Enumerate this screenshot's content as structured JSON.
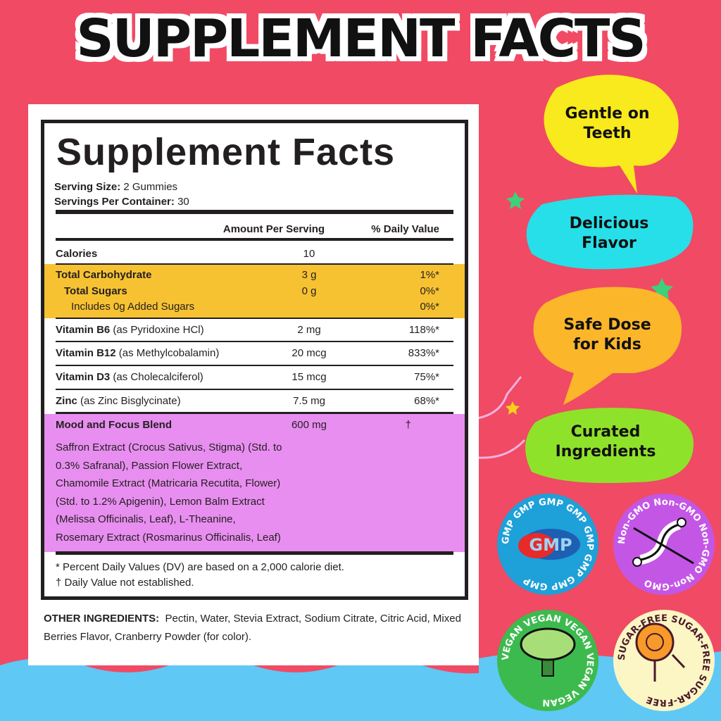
{
  "hero_title": "SUPPLEMENT FACTS",
  "label": {
    "title": "Supplement Facts",
    "serving_size_label": "Serving Size:",
    "serving_size": "2 Gummies",
    "servings_label": "Servings Per Container:",
    "servings": "30",
    "col_amount": "Amount Per Serving",
    "col_dv": "% Daily Value",
    "rows": [
      {
        "name": "Calories",
        "note": "",
        "amount": "10",
        "dv": ""
      },
      {
        "name": "Total Carbohydrate",
        "note": "",
        "amount": "3 g",
        "dv": "1%*"
      },
      {
        "name": "Total Sugars",
        "note": "",
        "amount": "0 g",
        "dv": "0%*"
      },
      {
        "name": "",
        "note": "Includes 0g Added Sugars",
        "amount": "",
        "dv": "0%*"
      },
      {
        "name": "Vitamin B6",
        "note": "(as Pyridoxine HCl)",
        "amount": "2 mg",
        "dv": "118%*"
      },
      {
        "name": "Vitamin B12",
        "note": "(as Methylcobalamin)",
        "amount": "20 mcg",
        "dv": "833%*"
      },
      {
        "name": "Vitamin D3",
        "note": "(as Cholecalciferol)",
        "amount": "15 mcg",
        "dv": "75%*"
      },
      {
        "name": "Zinc",
        "note": "(as Zinc Bisglycinate)",
        "amount": "7.5 mg",
        "dv": "68%*"
      },
      {
        "name": "Mood and Focus Blend",
        "note": "",
        "amount": "600 mg",
        "dv": "†"
      }
    ],
    "blend_ingredients": [
      "Saffron Extract (Crocus Sativus, Stigma) (Std. to",
      "0.3% Safranal), Passion Flower Extract,",
      "Chamomile Extract (Matricaria Recutita, Flower)",
      "(Std. to 1.2% Apigenin),  Lemon Balm Extract",
      "(Melissa Officinalis, Leaf), L-Theanine,",
      "Rosemary Extract (Rosmarinus Officinalis, Leaf)"
    ],
    "footnote1": "* Percent Daily Values (DV) are based on a 2,000 calorie diet.",
    "footnote2": "† Daily Value not established."
  },
  "other_ingredients": {
    "label": "OTHER INGREDIENTS:",
    "text": "Pectin, Water, Stevia Extract, Sodium Citrate, Citric Acid, Mixed Berries Flavor, Cranberry Powder (for color)."
  },
  "bubbles": [
    {
      "line1": "Gentle on",
      "line2": "Teeth",
      "color": "#f8ea1c"
    },
    {
      "line1": "Delicious",
      "line2": "Flavor",
      "color": "#27dfe8"
    },
    {
      "line1": "Safe Dose",
      "line2": "for Kids",
      "color": "#fbb62a"
    },
    {
      "line1": "Curated",
      "line2": "Ingredients",
      "color": "#8fe22a"
    }
  ],
  "badges": [
    {
      "ring": "GMP  GMP  GMP  GMP  GMP  GMP  GMP  GMP",
      "logo": "GMP",
      "color": "#1ea0d8",
      "icon": "gmp-logo-icon"
    },
    {
      "ring": "Non-GMO   Non-GMO   Non-GMO   Non-GMO",
      "color": "#c456e6",
      "icon": "dna-crossed-icon"
    },
    {
      "ring": "VEGAN   VEGAN   VEGAN   VEGAN   VEGAN",
      "color": "#3dba4e",
      "icon": "broccoli-icon"
    },
    {
      "ring": "SUGAR-FREE   SUGAR-FREE   SUGAR-FREE",
      "color": "#fbf6c4",
      "icon": "lollipop-crossed-icon"
    }
  ],
  "colors": {
    "background": "#f04a64",
    "wave": "#5fc8f5",
    "carb_band": "#f7c232",
    "blend_band": "#e88ef0"
  }
}
